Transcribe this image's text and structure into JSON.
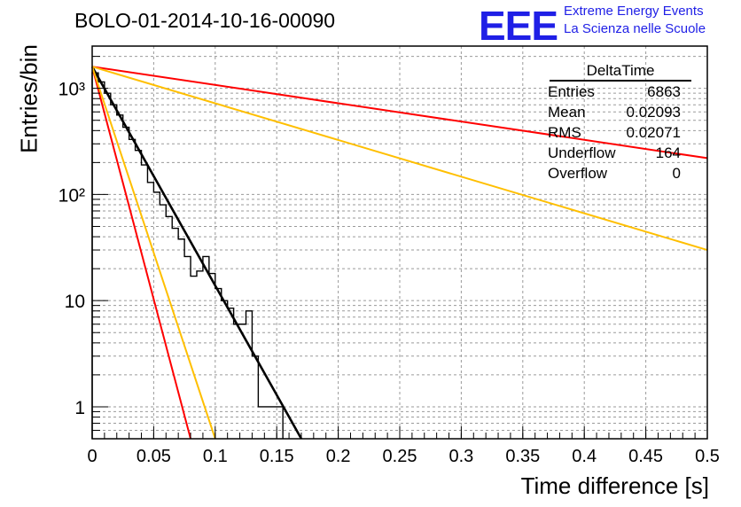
{
  "chart_data": {
    "type": "line",
    "title": "BOLO-01-2014-10-16-00090",
    "xlabel": "Time difference [s]",
    "ylabel": "Entries/bin",
    "xlim": [
      0,
      0.5
    ],
    "ylim": [
      0.5,
      2500
    ],
    "yscale": "log",
    "grid": true,
    "x_ticks": [
      "0",
      "0.05",
      "0.1",
      "0.15",
      "0.2",
      "0.25",
      "0.3",
      "0.35",
      "0.4",
      "0.45",
      "0.5"
    ],
    "y_ticks": [
      "1",
      "10",
      "10²",
      "10³"
    ],
    "histogram": {
      "bin_width": 0.005,
      "x": [
        0.0025,
        0.0075,
        0.0125,
        0.0175,
        0.0225,
        0.0275,
        0.0325,
        0.0375,
        0.0425,
        0.0475,
        0.0525,
        0.0575,
        0.0625,
        0.0675,
        0.0725,
        0.0775,
        0.0825,
        0.0875,
        0.0925,
        0.0975,
        0.1025,
        0.1075,
        0.1125,
        0.1175,
        0.1225,
        0.1275,
        0.1325,
        0.1375,
        0.1425,
        0.1475,
        0.1525
      ],
      "values": [
        1400,
        1150,
        900,
        700,
        560,
        430,
        330,
        260,
        190,
        130,
        105,
        80,
        62,
        48,
        38,
        26,
        17,
        19,
        26,
        18,
        13,
        10,
        8.5,
        6,
        6,
        8,
        3,
        1,
        1,
        1,
        1
      ]
    },
    "series": [
      {
        "color": "#000000",
        "x": [
          0,
          0.17
        ],
        "y": [
          1600,
          0.5
        ]
      },
      {
        "color": "#ff0000",
        "x": [
          0,
          0.5
        ],
        "y": [
          1600,
          220
        ]
      },
      {
        "color": "#ffbf00",
        "x": [
          0,
          0.5
        ],
        "y": [
          1600,
          30
        ]
      },
      {
        "color": "#ff0000",
        "x": [
          0,
          0.08
        ],
        "y": [
          1600,
          0.5
        ]
      },
      {
        "color": "#ffbf00",
        "x": [
          0,
          0.1
        ],
        "y": [
          1600,
          0.5
        ]
      }
    ]
  },
  "logo": {
    "mark": "EEE",
    "line1": "Extreme Energy Events",
    "line2": "La Scienza nelle Scuole"
  },
  "stats": {
    "name": "DeltaTime",
    "rows": [
      {
        "label": "Entries",
        "value": "6863"
      },
      {
        "label": "Mean",
        "value": "0.02093"
      },
      {
        "label": "RMS",
        "value": "0.02071"
      },
      {
        "label": "Underflow",
        "value": "164"
      },
      {
        "label": "Overflow",
        "value": "0"
      }
    ]
  }
}
